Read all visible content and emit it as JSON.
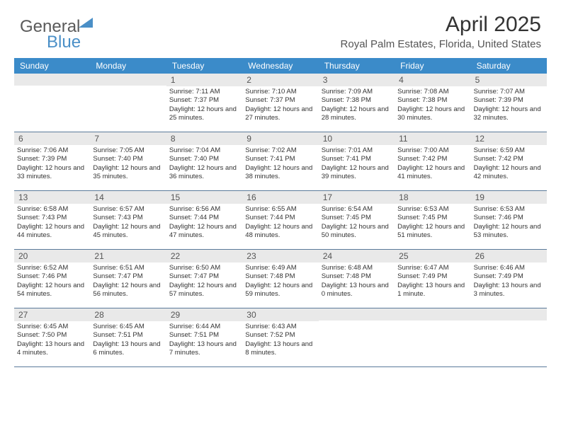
{
  "logo": {
    "part1": "General",
    "part2": "Blue"
  },
  "title": "April 2025",
  "location": "Royal Palm Estates, Florida, United States",
  "colors": {
    "header_bg": "#3b8bc9",
    "header_text": "#ffffff",
    "daynum_bg": "#e9e9e9",
    "row_border": "#5a7a9a",
    "logo_blue": "#4a8fc7"
  },
  "day_headers": [
    "Sunday",
    "Monday",
    "Tuesday",
    "Wednesday",
    "Thursday",
    "Friday",
    "Saturday"
  ],
  "weeks": [
    [
      {
        "empty": true
      },
      {
        "empty": true
      },
      {
        "num": "1",
        "sunrise": "Sunrise: 7:11 AM",
        "sunset": "Sunset: 7:37 PM",
        "daylight": "Daylight: 12 hours and 25 minutes."
      },
      {
        "num": "2",
        "sunrise": "Sunrise: 7:10 AM",
        "sunset": "Sunset: 7:37 PM",
        "daylight": "Daylight: 12 hours and 27 minutes."
      },
      {
        "num": "3",
        "sunrise": "Sunrise: 7:09 AM",
        "sunset": "Sunset: 7:38 PM",
        "daylight": "Daylight: 12 hours and 28 minutes."
      },
      {
        "num": "4",
        "sunrise": "Sunrise: 7:08 AM",
        "sunset": "Sunset: 7:38 PM",
        "daylight": "Daylight: 12 hours and 30 minutes."
      },
      {
        "num": "5",
        "sunrise": "Sunrise: 7:07 AM",
        "sunset": "Sunset: 7:39 PM",
        "daylight": "Daylight: 12 hours and 32 minutes."
      }
    ],
    [
      {
        "num": "6",
        "sunrise": "Sunrise: 7:06 AM",
        "sunset": "Sunset: 7:39 PM",
        "daylight": "Daylight: 12 hours and 33 minutes."
      },
      {
        "num": "7",
        "sunrise": "Sunrise: 7:05 AM",
        "sunset": "Sunset: 7:40 PM",
        "daylight": "Daylight: 12 hours and 35 minutes."
      },
      {
        "num": "8",
        "sunrise": "Sunrise: 7:04 AM",
        "sunset": "Sunset: 7:40 PM",
        "daylight": "Daylight: 12 hours and 36 minutes."
      },
      {
        "num": "9",
        "sunrise": "Sunrise: 7:02 AM",
        "sunset": "Sunset: 7:41 PM",
        "daylight": "Daylight: 12 hours and 38 minutes."
      },
      {
        "num": "10",
        "sunrise": "Sunrise: 7:01 AM",
        "sunset": "Sunset: 7:41 PM",
        "daylight": "Daylight: 12 hours and 39 minutes."
      },
      {
        "num": "11",
        "sunrise": "Sunrise: 7:00 AM",
        "sunset": "Sunset: 7:42 PM",
        "daylight": "Daylight: 12 hours and 41 minutes."
      },
      {
        "num": "12",
        "sunrise": "Sunrise: 6:59 AM",
        "sunset": "Sunset: 7:42 PM",
        "daylight": "Daylight: 12 hours and 42 minutes."
      }
    ],
    [
      {
        "num": "13",
        "sunrise": "Sunrise: 6:58 AM",
        "sunset": "Sunset: 7:43 PM",
        "daylight": "Daylight: 12 hours and 44 minutes."
      },
      {
        "num": "14",
        "sunrise": "Sunrise: 6:57 AM",
        "sunset": "Sunset: 7:43 PM",
        "daylight": "Daylight: 12 hours and 45 minutes."
      },
      {
        "num": "15",
        "sunrise": "Sunrise: 6:56 AM",
        "sunset": "Sunset: 7:44 PM",
        "daylight": "Daylight: 12 hours and 47 minutes."
      },
      {
        "num": "16",
        "sunrise": "Sunrise: 6:55 AM",
        "sunset": "Sunset: 7:44 PM",
        "daylight": "Daylight: 12 hours and 48 minutes."
      },
      {
        "num": "17",
        "sunrise": "Sunrise: 6:54 AM",
        "sunset": "Sunset: 7:45 PM",
        "daylight": "Daylight: 12 hours and 50 minutes."
      },
      {
        "num": "18",
        "sunrise": "Sunrise: 6:53 AM",
        "sunset": "Sunset: 7:45 PM",
        "daylight": "Daylight: 12 hours and 51 minutes."
      },
      {
        "num": "19",
        "sunrise": "Sunrise: 6:53 AM",
        "sunset": "Sunset: 7:46 PM",
        "daylight": "Daylight: 12 hours and 53 minutes."
      }
    ],
    [
      {
        "num": "20",
        "sunrise": "Sunrise: 6:52 AM",
        "sunset": "Sunset: 7:46 PM",
        "daylight": "Daylight: 12 hours and 54 minutes."
      },
      {
        "num": "21",
        "sunrise": "Sunrise: 6:51 AM",
        "sunset": "Sunset: 7:47 PM",
        "daylight": "Daylight: 12 hours and 56 minutes."
      },
      {
        "num": "22",
        "sunrise": "Sunrise: 6:50 AM",
        "sunset": "Sunset: 7:47 PM",
        "daylight": "Daylight: 12 hours and 57 minutes."
      },
      {
        "num": "23",
        "sunrise": "Sunrise: 6:49 AM",
        "sunset": "Sunset: 7:48 PM",
        "daylight": "Daylight: 12 hours and 59 minutes."
      },
      {
        "num": "24",
        "sunrise": "Sunrise: 6:48 AM",
        "sunset": "Sunset: 7:48 PM",
        "daylight": "Daylight: 13 hours and 0 minutes."
      },
      {
        "num": "25",
        "sunrise": "Sunrise: 6:47 AM",
        "sunset": "Sunset: 7:49 PM",
        "daylight": "Daylight: 13 hours and 1 minute."
      },
      {
        "num": "26",
        "sunrise": "Sunrise: 6:46 AM",
        "sunset": "Sunset: 7:49 PM",
        "daylight": "Daylight: 13 hours and 3 minutes."
      }
    ],
    [
      {
        "num": "27",
        "sunrise": "Sunrise: 6:45 AM",
        "sunset": "Sunset: 7:50 PM",
        "daylight": "Daylight: 13 hours and 4 minutes."
      },
      {
        "num": "28",
        "sunrise": "Sunrise: 6:45 AM",
        "sunset": "Sunset: 7:51 PM",
        "daylight": "Daylight: 13 hours and 6 minutes."
      },
      {
        "num": "29",
        "sunrise": "Sunrise: 6:44 AM",
        "sunset": "Sunset: 7:51 PM",
        "daylight": "Daylight: 13 hours and 7 minutes."
      },
      {
        "num": "30",
        "sunrise": "Sunrise: 6:43 AM",
        "sunset": "Sunset: 7:52 PM",
        "daylight": "Daylight: 13 hours and 8 minutes."
      },
      {
        "empty": true
      },
      {
        "empty": true
      },
      {
        "empty": true
      }
    ]
  ]
}
